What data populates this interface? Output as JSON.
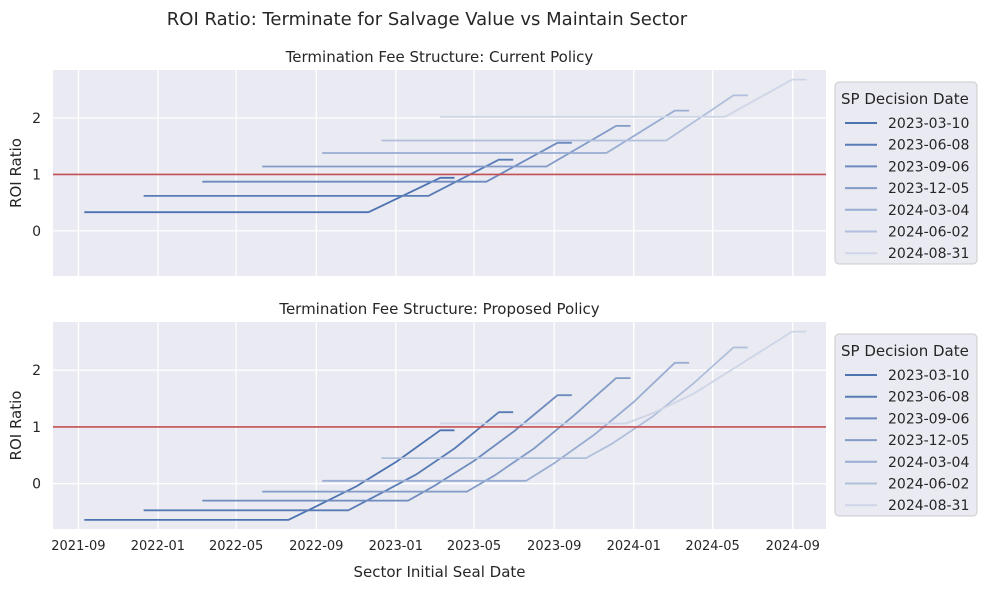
{
  "title": "ROI Ratio: Terminate for Salvage Value vs Maintain Sector",
  "chart_data": [
    {
      "type": "line",
      "title": "Termination Fee Structure: Current Policy",
      "xlabel": "",
      "ylabel": "ROI Ratio",
      "ylim": [
        -0.8,
        2.85
      ],
      "yticks": [
        0,
        1,
        2
      ],
      "xticks": [
        "2021-09",
        "2022-01",
        "2022-05",
        "2022-09",
        "2023-01",
        "2023-05",
        "2023-09",
        "2024-01",
        "2024-05",
        "2024-09"
      ],
      "show_xtick_labels": false,
      "xlim": [
        "2021-07-24",
        "2024-10-22"
      ],
      "grid": true,
      "legend_title": "SP Decision Date",
      "legend_position": "outside-right",
      "reference_line": {
        "y": 1,
        "color": "#c44e52"
      },
      "series": [
        {
          "name": "2023-03-10",
          "color": "#4c72b0",
          "points": [
            [
              "2021-09-10",
              0.33
            ],
            [
              "2022-11-20",
              0.33
            ],
            [
              "2023-03-10",
              0.94
            ],
            [
              "2023-04-01",
              0.94
            ]
          ]
        },
        {
          "name": "2023-06-08",
          "color": "#5a7cb6",
          "points": [
            [
              "2021-12-10",
              0.62
            ],
            [
              "2023-02-20",
              0.62
            ],
            [
              "2023-06-08",
              1.26
            ],
            [
              "2023-06-30",
              1.26
            ]
          ]
        },
        {
          "name": "2023-09-06",
          "color": "#6d8bbe",
          "points": [
            [
              "2022-03-10",
              0.87
            ],
            [
              "2023-05-20",
              0.87
            ],
            [
              "2023-09-06",
              1.56
            ],
            [
              "2023-09-28",
              1.56
            ]
          ]
        },
        {
          "name": "2023-12-05",
          "color": "#829bc7",
          "points": [
            [
              "2022-06-10",
              1.14
            ],
            [
              "2023-08-20",
              1.14
            ],
            [
              "2023-12-05",
              1.86
            ],
            [
              "2023-12-27",
              1.86
            ]
          ]
        },
        {
          "name": "2024-03-04",
          "color": "#98add1",
          "points": [
            [
              "2022-09-10",
              1.38
            ],
            [
              "2023-11-20",
              1.38
            ],
            [
              "2024-03-04",
              2.13
            ],
            [
              "2024-03-26",
              2.13
            ]
          ]
        },
        {
          "name": "2024-06-02",
          "color": "#b0bfdb",
          "points": [
            [
              "2022-12-10",
              1.6
            ],
            [
              "2024-02-20",
              1.6
            ],
            [
              "2024-06-02",
              2.4
            ],
            [
              "2024-06-24",
              2.4
            ]
          ]
        },
        {
          "name": "2024-08-31",
          "color": "#cdd5e6",
          "points": [
            [
              "2023-03-10",
              2.02
            ],
            [
              "2024-05-20",
              2.02
            ],
            [
              "2024-08-31",
              2.68
            ],
            [
              "2024-09-22",
              2.68
            ]
          ]
        }
      ]
    },
    {
      "type": "line",
      "title": "Termination Fee Structure: Proposed Policy",
      "xlabel": "Sector Initial Seal Date",
      "ylabel": "ROI Ratio",
      "ylim": [
        -0.8,
        2.85
      ],
      "yticks": [
        0,
        1,
        2
      ],
      "xticks": [
        "2021-09",
        "2022-01",
        "2022-05",
        "2022-09",
        "2023-01",
        "2023-05",
        "2023-09",
        "2024-01",
        "2024-05",
        "2024-09"
      ],
      "show_xtick_labels": true,
      "xlim": [
        "2021-07-24",
        "2024-10-22"
      ],
      "grid": true,
      "legend_title": "SP Decision Date",
      "legend_position": "outside-right",
      "reference_line": {
        "y": 1,
        "color": "#c44e52"
      },
      "series": [
        {
          "name": "2023-03-10",
          "color": "#4c72b0",
          "points": [
            [
              "2021-09-10",
              -0.64
            ],
            [
              "2022-07-20",
              -0.64
            ],
            [
              "2022-09-01",
              -0.4
            ],
            [
              "2022-11-01",
              -0.05
            ],
            [
              "2023-01-01",
              0.38
            ],
            [
              "2023-03-10",
              0.94
            ],
            [
              "2023-04-01",
              0.94
            ]
          ]
        },
        {
          "name": "2023-06-08",
          "color": "#5a7cb6",
          "points": [
            [
              "2021-12-10",
              -0.47
            ],
            [
              "2022-10-20",
              -0.47
            ],
            [
              "2022-12-01",
              -0.22
            ],
            [
              "2023-02-01",
              0.16
            ],
            [
              "2023-04-01",
              0.62
            ],
            [
              "2023-06-08",
              1.26
            ],
            [
              "2023-06-30",
              1.26
            ]
          ]
        },
        {
          "name": "2023-09-06",
          "color": "#6d8bbe",
          "points": [
            [
              "2022-03-10",
              -0.3
            ],
            [
              "2023-01-20",
              -0.3
            ],
            [
              "2023-03-01",
              -0.04
            ],
            [
              "2023-05-01",
              0.4
            ],
            [
              "2023-07-01",
              0.92
            ],
            [
              "2023-09-06",
              1.56
            ],
            [
              "2023-09-28",
              1.56
            ]
          ]
        },
        {
          "name": "2023-12-05",
          "color": "#829bc7",
          "points": [
            [
              "2022-06-10",
              -0.14
            ],
            [
              "2023-04-20",
              -0.14
            ],
            [
              "2023-06-01",
              0.14
            ],
            [
              "2023-08-01",
              0.62
            ],
            [
              "2023-10-01",
              1.2
            ],
            [
              "2023-12-05",
              1.86
            ],
            [
              "2023-12-27",
              1.86
            ]
          ]
        },
        {
          "name": "2024-03-04",
          "color": "#98add1",
          "points": [
            [
              "2022-09-10",
              0.05
            ],
            [
              "2023-07-20",
              0.05
            ],
            [
              "2023-09-01",
              0.36
            ],
            [
              "2023-11-01",
              0.86
            ],
            [
              "2024-01-01",
              1.44
            ],
            [
              "2024-03-04",
              2.13
            ],
            [
              "2024-03-26",
              2.13
            ]
          ]
        },
        {
          "name": "2024-06-02",
          "color": "#b0bfdb",
          "points": [
            [
              "2022-12-10",
              0.45
            ],
            [
              "2023-10-20",
              0.45
            ],
            [
              "2023-12-01",
              0.72
            ],
            [
              "2024-02-01",
              1.2
            ],
            [
              "2024-04-01",
              1.76
            ],
            [
              "2024-06-02",
              2.4
            ],
            [
              "2024-06-24",
              2.4
            ]
          ]
        },
        {
          "name": "2024-08-31",
          "color": "#cdd5e6",
          "points": [
            [
              "2023-03-10",
              1.06
            ],
            [
              "2023-12-20",
              1.06
            ],
            [
              "2024-02-01",
              1.25
            ],
            [
              "2024-04-01",
              1.58
            ],
            [
              "2024-06-01",
              2.02
            ],
            [
              "2024-08-31",
              2.68
            ],
            [
              "2024-09-22",
              2.68
            ]
          ]
        }
      ]
    }
  ]
}
